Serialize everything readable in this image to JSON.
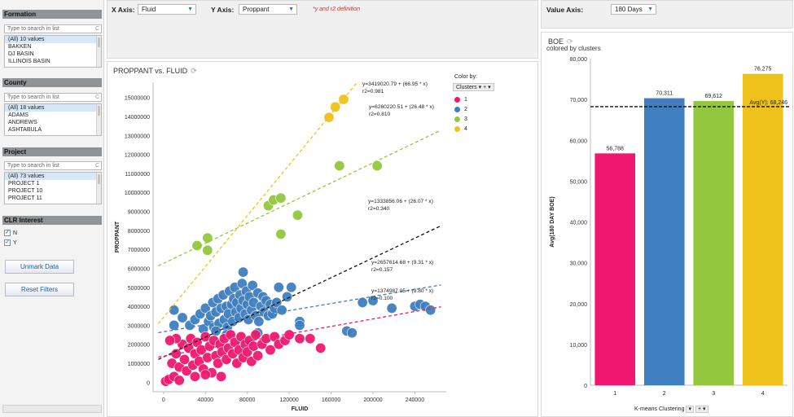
{
  "sidebar": {
    "sections": [
      {
        "title": "Formation",
        "search_placeholder": "Type to search in list",
        "items": [
          "(All) 10 values",
          "BAKKEN",
          "DJ BASIN",
          "ILLINOIS BASIN"
        ]
      },
      {
        "title": "County",
        "search_placeholder": "Type to search in list",
        "items": [
          "(All) 18 values",
          "ADAMS",
          "ANDREWS",
          "ASHTABULA"
        ]
      },
      {
        "title": "Project",
        "search_placeholder": "Type to search in list",
        "items": [
          "(All) 73 values",
          "PROJECT 1",
          "PROJECT 10",
          "PROJECT 11"
        ]
      }
    ],
    "clr": {
      "title": "CLR Interest",
      "options": [
        {
          "label": "N",
          "checked": true
        },
        {
          "label": "Y",
          "checked": true
        }
      ]
    },
    "unmark_label": "Unmark Data",
    "reset_label": "Reset Filters"
  },
  "axisbar": {
    "x_label": "X Axis:",
    "x_value": "Fluid",
    "y_label": "Y Axis:",
    "y_value": "Proppant",
    "note": "*y and r2 definition"
  },
  "scatter": {
    "title": "PROPPANT vs. FLUID",
    "color_by_label": "Color by:",
    "color_by_value": "Clusters",
    "legend": [
      {
        "label": "1",
        "color": "#f0186e"
      },
      {
        "label": "2",
        "color": "#3f7fbf"
      },
      {
        "label": "3",
        "color": "#93c83e"
      },
      {
        "label": "4",
        "color": "#eec11b"
      }
    ],
    "equations": [
      {
        "eq": "y=3419020.79 + (66.95 * x)",
        "r2": "r2=0.981"
      },
      {
        "eq": "y=6260220.51 + (26.48 * x)",
        "r2": "r2=0.810"
      },
      {
        "eq": "y=1333856.06 + (26.07 * x)",
        "r2": "r2=0.340"
      },
      {
        "eq": "y=2657614.68 + (9.31 * x)",
        "r2": "r2=0.157"
      },
      {
        "eq": "y=1374987.05 + (9.80 * x)",
        "r2": "r2=0.100"
      }
    ]
  },
  "valbar": {
    "label": "Value Axis:",
    "value": "180 Days"
  },
  "bars": {
    "title": "BOE",
    "subtitle": "colored by clusters",
    "avg_label": "Avg(Y): 68,246",
    "x_control": "K-means Clustering"
  },
  "chart_data": [
    {
      "type": "scatter",
      "title": "PROPPANT vs. FLUID",
      "xlabel": "FLUID",
      "ylabel": "PROPPANT",
      "xlim": [
        -10000,
        270000
      ],
      "ylim": [
        -500000,
        15800000
      ],
      "xticks": [
        0,
        40000,
        80000,
        120000,
        160000,
        200000,
        240000
      ],
      "yticks": [
        0,
        1000000,
        2000000,
        3000000,
        4000000,
        5000000,
        6000000,
        7000000,
        8000000,
        9000000,
        10000000,
        11000000,
        12000000,
        13000000,
        14000000,
        15000000
      ],
      "trendlines": [
        {
          "cluster": "4",
          "intercept": 3419020.79,
          "slope": 66.95,
          "color": "#eec11b"
        },
        {
          "cluster": "3",
          "intercept": 6260220.51,
          "slope": 26.48,
          "color": "#93c83e"
        },
        {
          "cluster": "all",
          "intercept": 1333856.06,
          "slope": 26.07,
          "color": "#111111"
        },
        {
          "cluster": "2",
          "intercept": 2657614.68,
          "slope": 9.31,
          "color": "#3f7fbf"
        },
        {
          "cluster": "1",
          "intercept": 1374987.05,
          "slope": 9.8,
          "color": "#f0186e"
        }
      ],
      "series": [
        {
          "name": "4",
          "points": [
            [
              158000,
              13950000
            ],
            [
              164000,
              14500000
            ],
            [
              172000,
              14900000
            ]
          ]
        },
        {
          "name": "3",
          "points": [
            [
              32000,
              7200000
            ],
            [
              42000,
              7600000
            ],
            [
              42000,
              6950000
            ],
            [
              100000,
              9300000
            ],
            [
              105000,
              9600000
            ],
            [
              112000,
              9700000
            ],
            [
              112000,
              7800000
            ],
            [
              128000,
              8800000
            ],
            [
              168000,
              11400000
            ],
            [
              204000,
              11400000
            ]
          ]
        },
        {
          "name": "2",
          "points": [
            [
              10000,
              3800000
            ],
            [
              10000,
              3000000
            ],
            [
              18000,
              3400000
            ],
            [
              25000,
              3000000
            ],
            [
              30000,
              3300000
            ],
            [
              35000,
              3600000
            ],
            [
              38000,
              2800000
            ],
            [
              40000,
              3900000
            ],
            [
              43000,
              3200000
            ],
            [
              45000,
              3500000
            ],
            [
              47000,
              4200000
            ],
            [
              48000,
              2900000
            ],
            [
              50000,
              3700000
            ],
            [
              52000,
              4400000
            ],
            [
              53000,
              3100000
            ],
            [
              55000,
              3900000
            ],
            [
              57000,
              4600000
            ],
            [
              58000,
              3300000
            ],
            [
              60000,
              4000000
            ],
            [
              61000,
              2900000
            ],
            [
              62000,
              3600000
            ],
            [
              63000,
              4800000
            ],
            [
              65000,
              4100000
            ],
            [
              66000,
              3200000
            ],
            [
              67000,
              4400000
            ],
            [
              68000,
              5000000
            ],
            [
              69000,
              3700000
            ],
            [
              70000,
              4200000
            ],
            [
              72000,
              3400000
            ],
            [
              73000,
              4600000
            ],
            [
              74000,
              3900000
            ],
            [
              75000,
              5200000
            ],
            [
              76000,
              4300000
            ],
            [
              78000,
              3600000
            ],
            [
              79000,
              4800000
            ],
            [
              80000,
              4100000
            ],
            [
              81000,
              3300000
            ],
            [
              82000,
              4500000
            ],
            [
              84000,
              3800000
            ],
            [
              85000,
              5100000
            ],
            [
              86000,
              4200000
            ],
            [
              88000,
              3500000
            ],
            [
              90000,
              4700000
            ],
            [
              91000,
              3200000
            ],
            [
              93000,
              4000000
            ],
            [
              95000,
              4500000
            ],
            [
              96000,
              3700000
            ],
            [
              98000,
              4300000
            ],
            [
              100000,
              3500000
            ],
            [
              102000,
              4100000
            ],
            [
              104000,
              3600000
            ],
            [
              106000,
              3900000
            ],
            [
              108000,
              4200000
            ],
            [
              110000,
              5000000
            ],
            [
              113000,
              3800000
            ],
            [
              118000,
              4500000
            ],
            [
              122000,
              5000000
            ],
            [
              130000,
              3200000
            ],
            [
              130000,
              3000000
            ],
            [
              175000,
              2700000
            ],
            [
              180000,
              2600000
            ],
            [
              190000,
              4200000
            ],
            [
              200000,
              4300000
            ],
            [
              218000,
              3900000
            ],
            [
              240000,
              4000000
            ],
            [
              245000,
              4100000
            ],
            [
              250000,
              4000000
            ],
            [
              255000,
              3800000
            ],
            [
              76000,
              5800000
            ],
            [
              60000,
              2500000
            ],
            [
              50000,
              2700000
            ],
            [
              90000,
              2600000
            ]
          ]
        },
        {
          "name": "1",
          "points": [
            [
              2000,
              50000
            ],
            [
              5000,
              150000
            ],
            [
              8000,
              1000000
            ],
            [
              10000,
              300000
            ],
            [
              12000,
              1500000
            ],
            [
              15000,
              800000
            ],
            [
              18000,
              2000000
            ],
            [
              20000,
              1200000
            ],
            [
              22000,
              600000
            ],
            [
              24000,
              1800000
            ],
            [
              26000,
              2300000
            ],
            [
              28000,
              900000
            ],
            [
              30000,
              1500000
            ],
            [
              32000,
              2100000
            ],
            [
              34000,
              1100000
            ],
            [
              36000,
              1700000
            ],
            [
              38000,
              700000
            ],
            [
              40000,
              2400000
            ],
            [
              42000,
              1300000
            ],
            [
              44000,
              1900000
            ],
            [
              46000,
              500000
            ],
            [
              48000,
              2200000
            ],
            [
              50000,
              1400000
            ],
            [
              52000,
              1000000
            ],
            [
              54000,
              2000000
            ],
            [
              56000,
              1600000
            ],
            [
              58000,
              2300000
            ],
            [
              60000,
              1200000
            ],
            [
              62000,
              1800000
            ],
            [
              64000,
              2500000
            ],
            [
              66000,
              1500000
            ],
            [
              68000,
              2100000
            ],
            [
              70000,
              1000000
            ],
            [
              72000,
              1700000
            ],
            [
              74000,
              2400000
            ],
            [
              76000,
              1300000
            ],
            [
              78000,
              2000000
            ],
            [
              80000,
              1600000
            ],
            [
              82000,
              2200000
            ],
            [
              84000,
              1100000
            ],
            [
              86000,
              1900000
            ],
            [
              88000,
              2500000
            ],
            [
              90000,
              1400000
            ],
            [
              94000,
              2000000
            ],
            [
              98000,
              2300000
            ],
            [
              102000,
              1700000
            ],
            [
              106000,
              2400000
            ],
            [
              110000,
              2000000
            ],
            [
              116000,
              2200000
            ],
            [
              120000,
              2500000
            ],
            [
              130000,
              2300000
            ],
            [
              140000,
              2300000
            ],
            [
              150000,
              1800000
            ],
            [
              12000,
              2300000
            ],
            [
              6000,
              2200000
            ],
            [
              30000,
              300000
            ],
            [
              40000,
              400000
            ],
            [
              55000,
              300000
            ],
            [
              15000,
              100000
            ]
          ]
        }
      ]
    },
    {
      "type": "bar",
      "title": "BOE",
      "xlabel": "K-means Clustering",
      "ylabel": "Avg(180 DAY BOE)",
      "categories": [
        "1",
        "2",
        "3",
        "4"
      ],
      "values": [
        56788,
        70311,
        69612,
        76275
      ],
      "value_labels": [
        "56,788",
        "70,311",
        "69,612",
        "76,275"
      ],
      "colors": [
        "#f0186e",
        "#3f7fbf",
        "#93c83e",
        "#eec11b"
      ],
      "ylim": [
        0,
        80000
      ],
      "yticks": [
        "0",
        "10,000",
        "20,000",
        "30,000",
        "40,000",
        "50,000",
        "60,000",
        "70,000",
        "80,000"
      ],
      "reference_line": {
        "label": "Avg(Y): 68,246",
        "value": 68246
      }
    }
  ]
}
